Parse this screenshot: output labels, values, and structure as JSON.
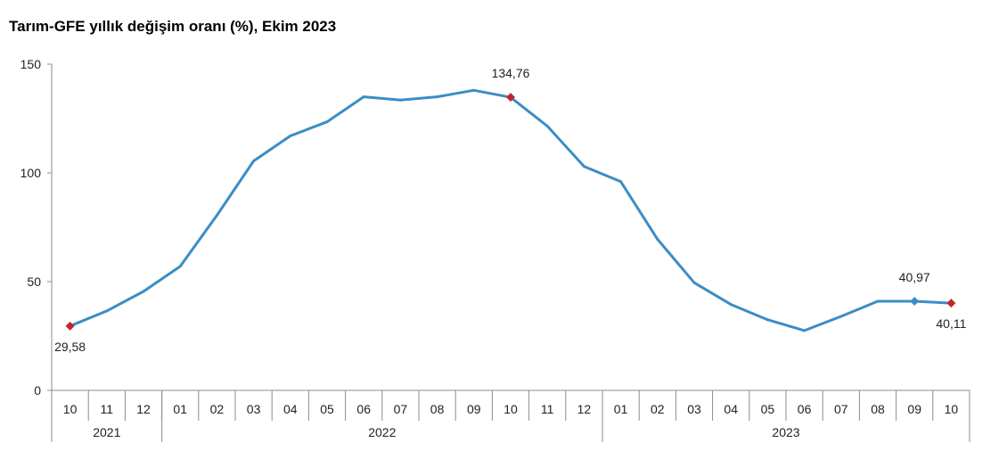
{
  "title": "Tarım-GFE yıllık değişim oranı (%), Ekim 2023",
  "colors": {
    "line": "#3C8DC4",
    "highlight_marker": "#C0272D",
    "axis": "#8C8C8C",
    "text": "#222222"
  },
  "chart_data": {
    "type": "line",
    "title": "Tarım-GFE yıllık değişim oranı (%), Ekim 2023",
    "xlabel": "",
    "ylabel": "",
    "ylim": [
      0,
      150
    ],
    "yticks": [
      "0",
      "50",
      "100",
      "150"
    ],
    "grid": false,
    "legend": "none",
    "categories": [
      "10",
      "11",
      "12",
      "01",
      "02",
      "03",
      "04",
      "05",
      "06",
      "07",
      "08",
      "09",
      "10",
      "11",
      "12",
      "01",
      "02",
      "03",
      "04",
      "05",
      "06",
      "07",
      "08",
      "09",
      "10"
    ],
    "year_groups": [
      {
        "label": "2021",
        "start": 0,
        "end": 2
      },
      {
        "label": "2022",
        "start": 3,
        "end": 14
      },
      {
        "label": "2023",
        "start": 15,
        "end": 24
      }
    ],
    "series": [
      {
        "values": [
          29.58,
          36.5,
          45.5,
          57.0,
          80.5,
          105.5,
          117.0,
          123.5,
          135.0,
          133.5,
          135.0,
          138.0,
          134.76,
          121.5,
          103.0,
          96.0,
          69.5,
          49.5,
          39.5,
          32.5,
          27.5,
          34.0,
          41.0,
          40.97,
          40.11
        ]
      }
    ],
    "annotations": [
      {
        "index": 0,
        "text": "29,58",
        "marker": "red",
        "position": "below"
      },
      {
        "index": 12,
        "text": "134,76",
        "marker": "red",
        "position": "above"
      },
      {
        "index": 23,
        "text": "40,97",
        "marker": "blue",
        "position": "above"
      },
      {
        "index": 24,
        "text": "40,11",
        "marker": "red",
        "position": "below"
      }
    ]
  }
}
